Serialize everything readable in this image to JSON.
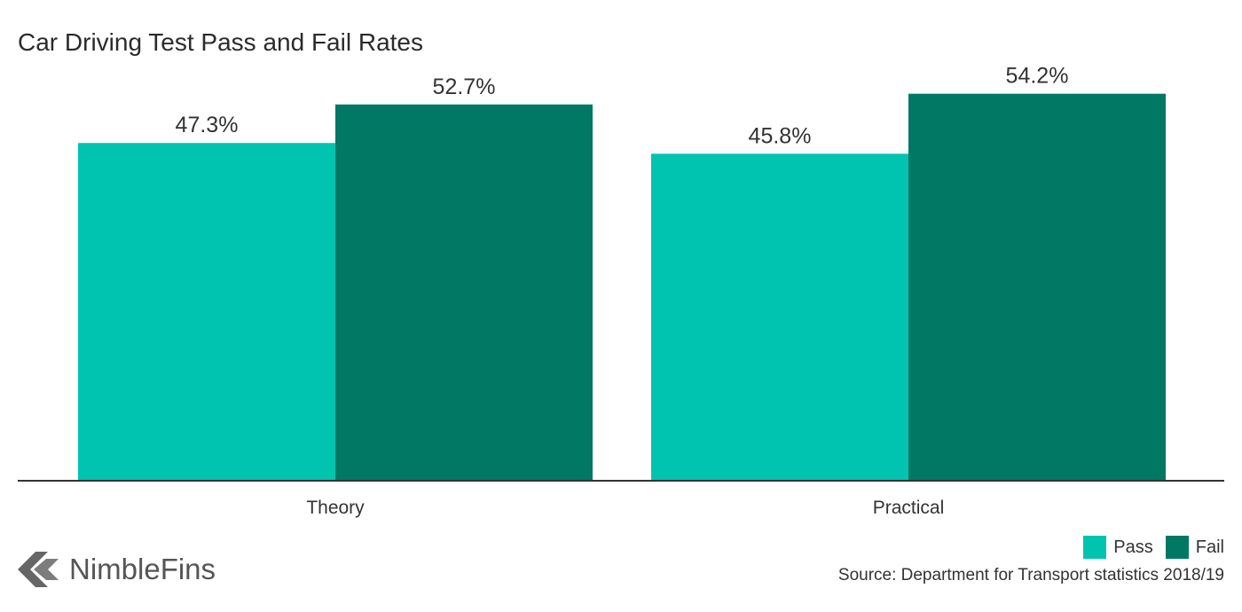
{
  "chart_data": {
    "type": "bar",
    "title": "Car Driving Test Pass and Fail Rates",
    "categories": [
      "Theory",
      "Practical"
    ],
    "series": [
      {
        "name": "Pass",
        "values": [
          47.3,
          45.8
        ],
        "labels": [
          "47.3%",
          "45.8%"
        ],
        "color": "#00c4b0"
      },
      {
        "name": "Fail",
        "values": [
          52.7,
          54.2
        ],
        "labels": [
          "52.7%",
          "54.2%"
        ],
        "color": "#007863"
      }
    ],
    "ylim": [
      0,
      60
    ],
    "grid": false,
    "legend_position": "bottom-right"
  },
  "source": "Source: Department for Transport statistics 2018/19",
  "brand": {
    "name": "NimbleFins",
    "logo_icon": "nimblefins-logo-icon",
    "logo_color": "#666666"
  },
  "colors": {
    "axis": "#333333",
    "text": "#333333"
  }
}
